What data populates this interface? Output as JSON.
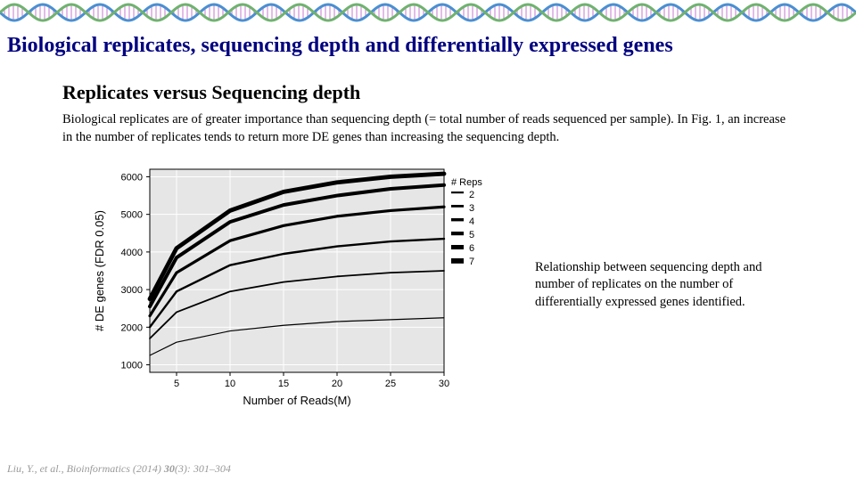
{
  "title": "Biological replicates, sequencing depth and differentially expressed genes",
  "section_title": "Replicates versus Sequencing depth",
  "paragraph": "Biological replicates are of greater importance than sequencing depth (= total number of reads sequenced per sample). In Fig. 1, an increase in the number of replicates tends to return more DE genes than increasing the sequencing depth.",
  "caption": "Relationship between sequencing depth and number of replicates on the number of differentially expressed genes identified.",
  "citation_prefix": "Liu, Y., et al., Bioinformatics (2014) ",
  "citation_vol": "30",
  "citation_suffix": "(3): 301–304",
  "dna": {
    "repeat_width": 64,
    "count": 15,
    "colors": {
      "strand1": "#4a8fd1",
      "strand2": "#6fb26f",
      "rung": "#d08fd8"
    }
  },
  "chart": {
    "type": "line",
    "xlabel": "Number of Reads(M)",
    "ylabel": "# DE genes (FDR 0.05)",
    "label_fontsize": 13,
    "tick_fontsize": 11,
    "xlim": [
      2.5,
      30
    ],
    "ylim": [
      800,
      6200
    ],
    "xticks": [
      5,
      10,
      15,
      20,
      25,
      30
    ],
    "yticks": [
      1000,
      2000,
      3000,
      4000,
      5000,
      6000
    ],
    "background_color": "#e6e6e6",
    "grid_color": "#ffffff",
    "axis_color": "#000000",
    "line_color": "#000000",
    "legend": {
      "title": "# Reps",
      "labels": [
        "2",
        "3",
        "4",
        "5",
        "6",
        "7"
      ],
      "title_fontsize": 11,
      "label_fontsize": 11
    },
    "series": [
      {
        "name": "2",
        "width": 1.2,
        "x": [
          2.5,
          5,
          10,
          15,
          20,
          25,
          30
        ],
        "y": [
          1250,
          1600,
          1900,
          2050,
          2150,
          2200,
          2250
        ]
      },
      {
        "name": "3",
        "width": 1.8,
        "x": [
          2.5,
          5,
          10,
          15,
          20,
          25,
          30
        ],
        "y": [
          1700,
          2400,
          2950,
          3200,
          3350,
          3450,
          3500
        ]
      },
      {
        "name": "4",
        "width": 2.4,
        "x": [
          2.5,
          5,
          10,
          15,
          20,
          25,
          30
        ],
        "y": [
          2000,
          2950,
          3650,
          3950,
          4150,
          4280,
          4350
        ]
      },
      {
        "name": "5",
        "width": 3.2,
        "x": [
          2.5,
          5,
          10,
          15,
          20,
          25,
          30
        ],
        "y": [
          2300,
          3450,
          4300,
          4700,
          4950,
          5100,
          5200
        ]
      },
      {
        "name": "6",
        "width": 4.0,
        "x": [
          2.5,
          5,
          10,
          15,
          20,
          25,
          30
        ],
        "y": [
          2550,
          3850,
          4800,
          5250,
          5500,
          5680,
          5780
        ]
      },
      {
        "name": "7",
        "width": 4.8,
        "x": [
          2.5,
          5,
          10,
          15,
          20,
          25,
          30
        ],
        "y": [
          2750,
          4100,
          5100,
          5600,
          5850,
          6000,
          6080
        ]
      }
    ]
  }
}
